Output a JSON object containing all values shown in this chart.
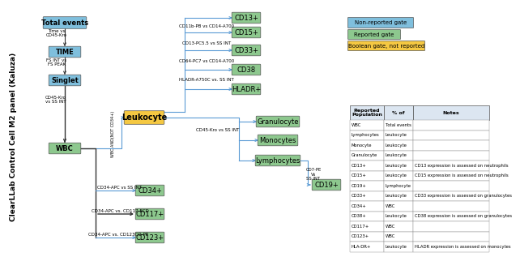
{
  "title": "ClearLLab Control Cell M2 panel (Kaluza)",
  "bg_color": "#ffffff",
  "blue_box_color": "#7fbfdd",
  "green_box_color": "#8dc88e",
  "yellow_box_color": "#f5c842",
  "arrow_color": "#5b9bd5",
  "dark_arrow_color": "#333333",
  "legend": {
    "non_reported": {
      "label": "Non-reported gate",
      "color": "#7fbfdd"
    },
    "reported": {
      "label": "Reported gate",
      "color": "#8dc88e"
    },
    "boolean": {
      "label": "Boolean gate, not reported",
      "color": "#f5c842"
    }
  },
  "table": {
    "headers": [
      "Reported\nPopulation",
      "% of",
      "Notes"
    ],
    "rows": [
      [
        "WBC",
        "Total events",
        ""
      ],
      [
        "Lymphocytes",
        "Leukocyte",
        ""
      ],
      [
        "Monocyte",
        "Leukocyte",
        ""
      ],
      [
        "Granulocyte",
        "Leukocyte",
        ""
      ],
      [
        "CD13+",
        "Leukocyte",
        "CD13 expression is assessed on neutrophils"
      ],
      [
        "CD15+",
        "Leukocyte",
        "CD15 expression is assessed on neutrophils"
      ],
      [
        "CD19+",
        "Lymphocyte",
        ""
      ],
      [
        "CD33+",
        "Leukocyte",
        "CD33 expression is assessed on granulocytes"
      ],
      [
        "CD34+",
        "WBC",
        ""
      ],
      [
        "CD38+",
        "Leukocyte",
        "CD38 expression is assessed on granulocytes"
      ],
      [
        "CD117+",
        "WBC",
        ""
      ],
      [
        "CD123+",
        "WBC",
        ""
      ],
      [
        "HLA-DR+",
        "Leukocyte",
        "HLADR expression is assessed on monocytes"
      ]
    ]
  }
}
